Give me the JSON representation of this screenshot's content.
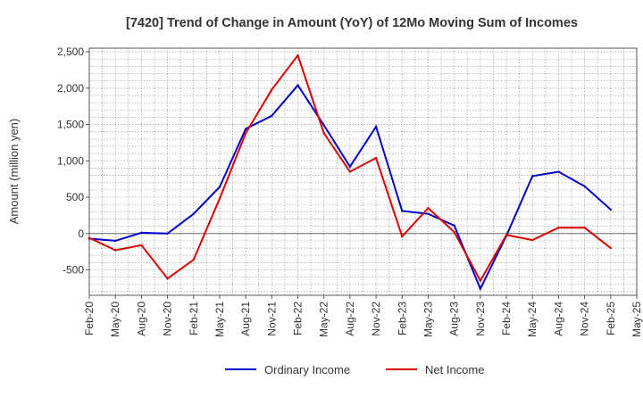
{
  "chart_data": {
    "type": "line",
    "title": "[7420]  Trend of Change in Amount (YoY) of 12Mo Moving Sum of Incomes",
    "xlabel": "",
    "ylabel": "Amount (million yen)",
    "ylim": [
      -850,
      2550
    ],
    "yticks": [
      -500,
      0,
      500,
      1000,
      1500,
      2000,
      2500
    ],
    "ytick_labels": [
      "-500",
      "0",
      "500",
      "1,000",
      "1,500",
      "2,000",
      "2,500"
    ],
    "categories": [
      "Feb-20",
      "May-20",
      "Aug-20",
      "Nov-20",
      "Feb-21",
      "May-21",
      "Aug-21",
      "Nov-21",
      "Feb-22",
      "May-22",
      "Aug-22",
      "Nov-22",
      "Feb-23",
      "May-23",
      "Aug-23",
      "Nov-23",
      "Feb-24",
      "May-24",
      "Aug-24",
      "Nov-24",
      "Feb-25",
      "May-25"
    ],
    "grid": true,
    "legend": "bottom-center",
    "series": [
      {
        "name": "Ordinary Income",
        "color": "#0000cc",
        "values": [
          -70,
          -100,
          10,
          0,
          270,
          640,
          1440,
          1620,
          2040,
          1490,
          920,
          1470,
          310,
          270,
          110,
          -760,
          -30,
          790,
          850,
          650,
          330,
          null
        ]
      },
      {
        "name": "Net Income",
        "color": "#dd0000",
        "values": [
          -60,
          -230,
          -160,
          -620,
          -360,
          480,
          1380,
          1980,
          2450,
          1380,
          850,
          1040,
          -40,
          350,
          20,
          -650,
          -20,
          -90,
          80,
          80,
          -200,
          null
        ]
      }
    ]
  }
}
